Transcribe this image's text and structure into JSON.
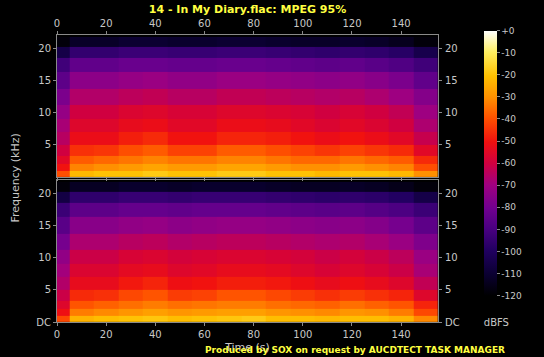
{
  "chart_data": {
    "type": "heatmap",
    "title": "14 - In My Diary.flac: MPEG 95%",
    "x_label": "Time (s)",
    "y_label": "Frequency (kHz)",
    "caption": "Produced by SOX on request by AUCDTECT TASK MANAGER",
    "x": [
      0,
      10,
      20,
      30,
      40,
      50,
      60,
      70,
      80,
      90,
      100,
      110,
      120,
      130,
      140,
      150
    ],
    "y": [
      0.5,
      1.5,
      2.5,
      4,
      6,
      8,
      10,
      12.5,
      15,
      17.5,
      19.5,
      21
    ],
    "xlim": [
      0,
      155
    ],
    "xticks": [
      0,
      20,
      40,
      60,
      80,
      100,
      120,
      140
    ],
    "ylim": [
      0,
      22.05
    ],
    "series": [
      {
        "yticks": [
          5,
          10,
          15,
          20
        ],
        "values": [
          [
            -40,
            -22,
            -20,
            -20,
            -18,
            -20,
            -20,
            -18,
            -18,
            -20,
            -20,
            -22,
            -20,
            -20,
            -22,
            -30
          ],
          [
            -50,
            -32,
            -30,
            -28,
            -26,
            -28,
            -28,
            -26,
            -26,
            -28,
            -30,
            -30,
            -28,
            -30,
            -32,
            -40
          ],
          [
            -55,
            -38,
            -36,
            -34,
            -32,
            -34,
            -34,
            -32,
            -32,
            -34,
            -36,
            -36,
            -34,
            -36,
            -38,
            -46
          ],
          [
            -60,
            -45,
            -44,
            -40,
            -38,
            -42,
            -42,
            -38,
            -38,
            -40,
            -42,
            -44,
            -42,
            -44,
            -46,
            -55
          ],
          [
            -65,
            -52,
            -52,
            -48,
            -46,
            -50,
            -50,
            -47,
            -47,
            -48,
            -50,
            -52,
            -50,
            -52,
            -55,
            -62
          ],
          [
            -68,
            -56,
            -56,
            -53,
            -52,
            -55,
            -55,
            -52,
            -52,
            -53,
            -55,
            -57,
            -55,
            -57,
            -60,
            -67
          ],
          [
            -72,
            -60,
            -60,
            -57,
            -56,
            -58,
            -58,
            -56,
            -56,
            -57,
            -58,
            -60,
            -58,
            -60,
            -63,
            -70
          ],
          [
            -78,
            -66,
            -66,
            -64,
            -63,
            -65,
            -65,
            -63,
            -63,
            -64,
            -65,
            -66,
            -65,
            -67,
            -70,
            -76
          ],
          [
            -85,
            -74,
            -74,
            -72,
            -71,
            -73,
            -73,
            -71,
            -71,
            -72,
            -73,
            -74,
            -73,
            -75,
            -78,
            -84
          ],
          [
            -92,
            -84,
            -84,
            -82,
            -82,
            -83,
            -83,
            -82,
            -82,
            -83,
            -84,
            -85,
            -84,
            -86,
            -88,
            -92
          ],
          [
            -105,
            -95,
            -95,
            -93,
            -93,
            -94,
            -94,
            -93,
            -93,
            -94,
            -95,
            -96,
            -95,
            -96,
            -98,
            -104
          ],
          [
            -118,
            -112,
            -112,
            -110,
            -110,
            -111,
            -111,
            -110,
            -110,
            -111,
            -112,
            -112,
            -111,
            -112,
            -114,
            -118
          ]
        ]
      },
      {
        "yticks": [
          {
            "value": 0,
            "label": "DC"
          },
          5,
          10,
          15,
          20
        ],
        "values": [
          [
            -41,
            -23,
            -21,
            -20,
            -19,
            -21,
            -20,
            -19,
            -18,
            -21,
            -21,
            -22,
            -21,
            -21,
            -23,
            -31
          ],
          [
            -51,
            -33,
            -31,
            -29,
            -27,
            -29,
            -28,
            -27,
            -27,
            -29,
            -30,
            -31,
            -29,
            -30,
            -33,
            -41
          ],
          [
            -56,
            -39,
            -37,
            -35,
            -33,
            -35,
            -34,
            -33,
            -33,
            -35,
            -36,
            -37,
            -35,
            -37,
            -39,
            -47
          ],
          [
            -61,
            -46,
            -45,
            -41,
            -39,
            -43,
            -42,
            -39,
            -39,
            -41,
            -43,
            -45,
            -43,
            -45,
            -47,
            -56
          ],
          [
            -66,
            -53,
            -53,
            -49,
            -47,
            -51,
            -50,
            -48,
            -48,
            -49,
            -51,
            -53,
            -51,
            -53,
            -56,
            -63
          ],
          [
            -69,
            -57,
            -57,
            -54,
            -53,
            -56,
            -55,
            -53,
            -53,
            -54,
            -56,
            -58,
            -56,
            -58,
            -61,
            -68
          ],
          [
            -73,
            -61,
            -61,
            -58,
            -57,
            -59,
            -58,
            -57,
            -57,
            -58,
            -59,
            -61,
            -59,
            -61,
            -64,
            -71
          ],
          [
            -79,
            -67,
            -67,
            -65,
            -64,
            -66,
            -65,
            -64,
            -64,
            -65,
            -66,
            -67,
            -66,
            -68,
            -71,
            -77
          ],
          [
            -86,
            -75,
            -75,
            -73,
            -72,
            -74,
            -73,
            -72,
            -72,
            -73,
            -74,
            -75,
            -74,
            -76,
            -79,
            -85
          ],
          [
            -93,
            -85,
            -85,
            -83,
            -83,
            -84,
            -83,
            -83,
            -83,
            -84,
            -85,
            -86,
            -85,
            -87,
            -89,
            -93
          ],
          [
            -106,
            -96,
            -96,
            -94,
            -94,
            -95,
            -94,
            -94,
            -94,
            -95,
            -96,
            -97,
            -96,
            -97,
            -99,
            -105
          ],
          [
            -118,
            -113,
            -113,
            -111,
            -111,
            -112,
            -111,
            -111,
            -111,
            -112,
            -113,
            -113,
            -112,
            -113,
            -115,
            -118
          ]
        ]
      }
    ],
    "colorbar": {
      "range": [
        -120,
        0
      ],
      "ticks": [
        {
          "value": 0,
          "label": "+0"
        },
        -10,
        -20,
        -30,
        -40,
        -50,
        -60,
        -70,
        -80,
        -90,
        -100,
        -110,
        -120
      ],
      "title": "dBFS"
    }
  }
}
